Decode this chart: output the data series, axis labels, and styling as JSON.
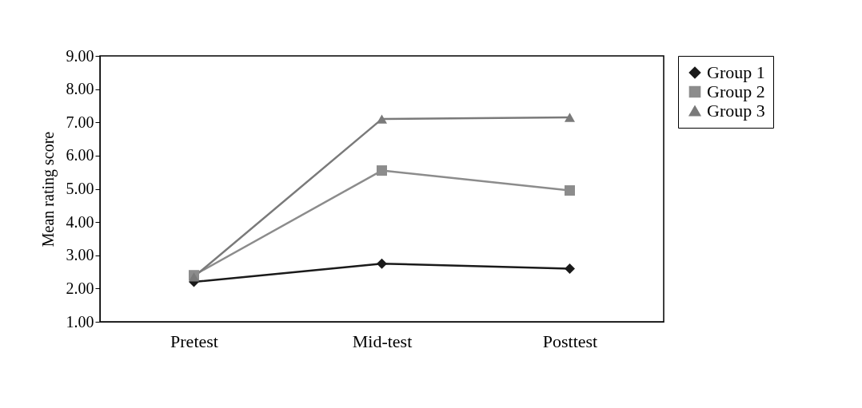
{
  "chart_data": {
    "type": "line",
    "ylabel": "Mean rating score",
    "categories": [
      "Pretest",
      "Mid-test",
      "Posttest"
    ],
    "series": [
      {
        "name": "Group 1",
        "color": "#1a1a1a",
        "marker": "diamond",
        "values": [
          2.2,
          2.75,
          2.6
        ]
      },
      {
        "name": "Group 2",
        "color": "#8c8c8c",
        "marker": "square",
        "values": [
          2.4,
          5.55,
          4.95
        ]
      },
      {
        "name": "Group 3",
        "color": "#7a7a7a",
        "marker": "triangle",
        "values": [
          2.35,
          7.1,
          7.15
        ]
      }
    ],
    "ylim": [
      1,
      9
    ],
    "yticks": [
      {
        "value": 1,
        "label": "1.00"
      },
      {
        "value": 2,
        "label": "2.00"
      },
      {
        "value": 3,
        "label": "3.00"
      },
      {
        "value": 4,
        "label": "4.00"
      },
      {
        "value": 5,
        "label": "5.00"
      },
      {
        "value": 6,
        "label": "6.00"
      },
      {
        "value": 7,
        "label": "7.00"
      },
      {
        "value": 8,
        "label": "8.00"
      },
      {
        "value": 9,
        "label": "9.00"
      }
    ],
    "grid": false,
    "legend": "right"
  }
}
